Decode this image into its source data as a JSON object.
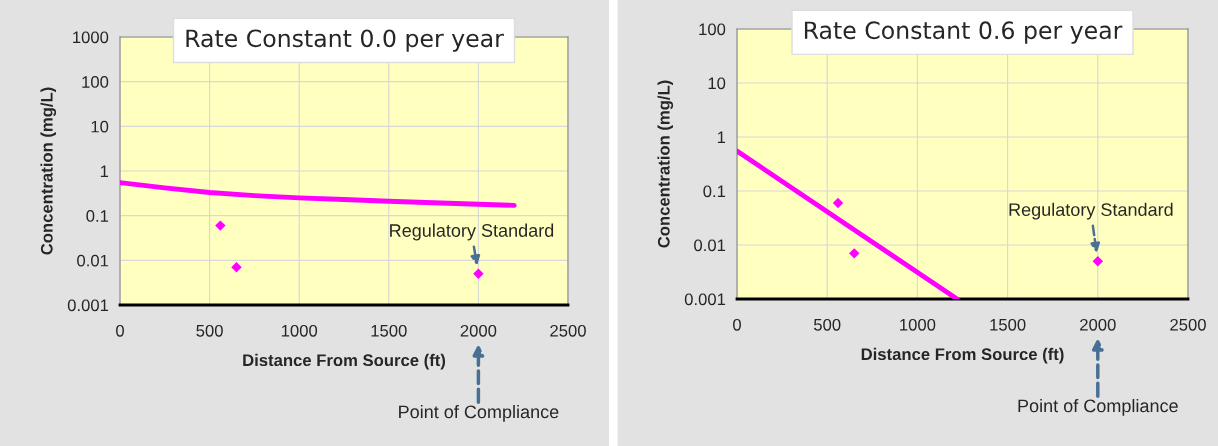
{
  "chart_data": [
    {
      "type": "line",
      "title": "Rate Constant 0.0 per year",
      "xlabel": "Distance From Source (ft)",
      "ylabel": "Concentration (mg/L)",
      "series": [
        {
          "type": "line",
          "color": "#ff00ff",
          "x": [
            0,
            250,
            500,
            750,
            1000,
            1250,
            1500,
            1750,
            2000,
            2200
          ],
          "values": [
            0.55,
            0.42,
            0.33,
            0.28,
            0.25,
            0.23,
            0.21,
            0.195,
            0.18,
            0.17
          ],
          "marker": "none",
          "line_style": "solid"
        },
        {
          "type": "scatter",
          "color": "#ff00ff",
          "x": [
            560,
            650,
            2000
          ],
          "values": [
            0.06,
            0.007,
            0.005
          ],
          "marker": "diamond"
        }
      ],
      "log": "y",
      "xlim": [
        0,
        2500
      ],
      "xticks": [
        0,
        500,
        1000,
        1500,
        2000,
        2500
      ],
      "ylim": [
        0.001,
        1000
      ],
      "yticks": [
        0.001,
        0.01,
        0.1,
        1,
        10,
        100,
        1000
      ],
      "grid": true,
      "annotations": [
        {
          "text": "Regulatory Standard",
          "x": 2000,
          "y": 0.005
        },
        "Point of Compliance"
      ]
    },
    {
      "type": "line",
      "title": "Rate Constant 0.6 per year",
      "xlabel": "Distance From Source (ft)",
      "ylabel": "Concentration (mg/L)",
      "series": [
        {
          "type": "line",
          "color": "#ff00ff",
          "x": [
            0,
            1220
          ],
          "values": [
            0.55,
            0.001
          ],
          "marker": "none",
          "line_style": "solid"
        },
        {
          "type": "scatter",
          "color": "#ff00ff",
          "x": [
            560,
            650,
            2000
          ],
          "values": [
            0.06,
            0.007,
            0.005
          ],
          "marker": "diamond"
        }
      ],
      "log": "y",
      "xlim": [
        0,
        2500
      ],
      "xticks": [
        0,
        500,
        1000,
        1500,
        2000,
        2500
      ],
      "ylim": [
        0.001,
        100
      ],
      "yticks": [
        0.001,
        0.01,
        0.1,
        1,
        10,
        100
      ],
      "grid": true,
      "annotations": [
        {
          "text": "Regulatory Standard",
          "x": 2000,
          "y": 0.005
        },
        "Point of Compliance"
      ]
    }
  ]
}
